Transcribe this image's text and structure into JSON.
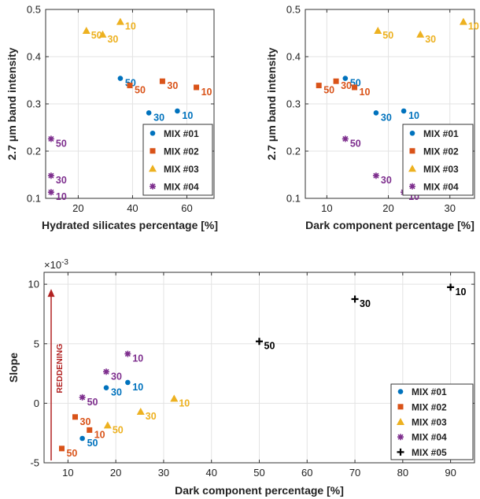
{
  "colors": {
    "mix01": "#0072BD",
    "mix02": "#D95319",
    "mix03": "#EDB120",
    "mix04": "#7E2F8E",
    "mix05": "#000000",
    "reddening": "#B22222"
  },
  "chart_data": [
    {
      "type": "scatter",
      "xlabel": "Hydrated silicates percentage [%]",
      "ylabel": "2.7 μm band intensity",
      "xlim": [
        8,
        70
      ],
      "ylim": [
        0.1,
        0.5
      ],
      "xticks": [
        20,
        40,
        60
      ],
      "yticks": [
        0.1,
        0.2,
        0.3,
        0.4,
        0.5
      ],
      "grid": true,
      "legend": "bottom-right",
      "series": [
        {
          "name": "MIX #01",
          "marker": "circle",
          "points": [
            {
              "x": 35.5,
              "y": 0.354,
              "label": "50"
            },
            {
              "x": 46,
              "y": 0.281,
              "label": "30"
            },
            {
              "x": 56.5,
              "y": 0.285,
              "label": "10"
            }
          ]
        },
        {
          "name": "MIX #02",
          "marker": "square",
          "points": [
            {
              "x": 39,
              "y": 0.339,
              "label": "50"
            },
            {
              "x": 51,
              "y": 0.348,
              "label": "30"
            },
            {
              "x": 63.5,
              "y": 0.335,
              "label": "10"
            }
          ]
        },
        {
          "name": "MIX #03",
          "marker": "triangle",
          "points": [
            {
              "x": 23,
              "y": 0.455,
              "label": "50"
            },
            {
              "x": 29,
              "y": 0.447,
              "label": "30"
            },
            {
              "x": 35.5,
              "y": 0.474,
              "label": "10"
            }
          ]
        },
        {
          "name": "MIX #04",
          "marker": "asterisk",
          "points": [
            {
              "x": 10,
              "y": 0.226,
              "label": "50"
            },
            {
              "x": 10,
              "y": 0.148,
              "label": "30"
            },
            {
              "x": 10,
              "y": 0.113,
              "label": "10"
            }
          ]
        }
      ]
    },
    {
      "type": "scatter",
      "xlabel": "Dark component percentage [%]",
      "ylabel": "2.7 μm band intensity",
      "xlim": [
        6.5,
        34
      ],
      "ylim": [
        0.1,
        0.5
      ],
      "xticks": [
        10,
        20,
        30
      ],
      "yticks": [
        0.1,
        0.2,
        0.3,
        0.4,
        0.5
      ],
      "grid": true,
      "legend": "bottom-right",
      "series": [
        {
          "name": "MIX #01",
          "marker": "circle",
          "points": [
            {
              "x": 13,
              "y": 0.354,
              "label": "50"
            },
            {
              "x": 18,
              "y": 0.281,
              "label": "30"
            },
            {
              "x": 22.5,
              "y": 0.285,
              "label": "10"
            }
          ]
        },
        {
          "name": "MIX #02",
          "marker": "square",
          "points": [
            {
              "x": 8.7,
              "y": 0.339,
              "label": "50"
            },
            {
              "x": 11.5,
              "y": 0.348,
              "label": "30"
            },
            {
              "x": 14.5,
              "y": 0.335,
              "label": "10"
            }
          ]
        },
        {
          "name": "MIX #03",
          "marker": "triangle",
          "points": [
            {
              "x": 18.3,
              "y": 0.455,
              "label": "50"
            },
            {
              "x": 25.2,
              "y": 0.447,
              "label": "30"
            },
            {
              "x": 32.2,
              "y": 0.474,
              "label": "10"
            }
          ]
        },
        {
          "name": "MIX #04",
          "marker": "asterisk",
          "points": [
            {
              "x": 13,
              "y": 0.226,
              "label": "50"
            },
            {
              "x": 18,
              "y": 0.148,
              "label": "30"
            },
            {
              "x": 22.5,
              "y": 0.113,
              "label": "10"
            }
          ]
        }
      ]
    },
    {
      "type": "scatter",
      "xlabel": "Dark component percentage [%]",
      "ylabel": "Slope",
      "exponent_label": "×10",
      "exponent_power": "-3",
      "xlim": [
        5,
        95
      ],
      "ylim": [
        -5,
        11
      ],
      "xticks": [
        10,
        20,
        30,
        40,
        50,
        60,
        70,
        80,
        90
      ],
      "yticks": [
        -5,
        0,
        5,
        10
      ],
      "grid": true,
      "legend": "bottom-right",
      "annotation": "REDDENING",
      "series": [
        {
          "name": "MIX #01",
          "marker": "circle",
          "points": [
            {
              "x": 13,
              "y": -2.95,
              "label": "50"
            },
            {
              "x": 18,
              "y": 1.3,
              "label": "30"
            },
            {
              "x": 22.5,
              "y": 1.75,
              "label": "10"
            }
          ]
        },
        {
          "name": "MIX #02",
          "marker": "square",
          "points": [
            {
              "x": 8.7,
              "y": -3.8,
              "label": "50"
            },
            {
              "x": 11.5,
              "y": -1.15,
              "label": "30"
            },
            {
              "x": 14.5,
              "y": -2.25,
              "label": "10"
            }
          ]
        },
        {
          "name": "MIX #03",
          "marker": "triangle",
          "points": [
            {
              "x": 18.3,
              "y": -1.85,
              "label": "50"
            },
            {
              "x": 25.2,
              "y": -0.7,
              "label": "30"
            },
            {
              "x": 32.2,
              "y": 0.4,
              "label": "10"
            }
          ]
        },
        {
          "name": "MIX #04",
          "marker": "asterisk",
          "points": [
            {
              "x": 13,
              "y": 0.5,
              "label": "50"
            },
            {
              "x": 18,
              "y": 2.65,
              "label": "30"
            },
            {
              "x": 22.5,
              "y": 4.15,
              "label": "10"
            }
          ]
        },
        {
          "name": "MIX #05",
          "marker": "plus",
          "points": [
            {
              "x": 50,
              "y": 5.2,
              "label": "50"
            },
            {
              "x": 70,
              "y": 8.75,
              "label": "30"
            },
            {
              "x": 90,
              "y": 9.75,
              "label": "10"
            }
          ]
        }
      ]
    }
  ]
}
